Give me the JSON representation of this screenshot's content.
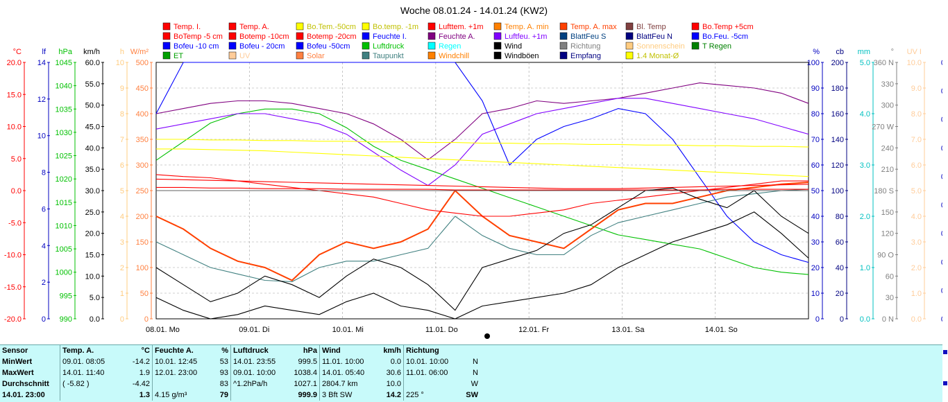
{
  "chart_data": {
    "type": "line",
    "title": "Woche 08.01.24 - 14.01.24 (KW2)",
    "x_ticks": [
      "08.01. Mo",
      "09.01. Di",
      "10.01. Mi",
      "11.01. Do",
      "12.01. Fr",
      "13.01. Sa",
      "14.01. So"
    ],
    "legend": [
      {
        "name": "Temp. I.",
        "color": "#ff0000"
      },
      {
        "name": "Temp. A.",
        "color": "#ff0000"
      },
      {
        "name": "Bo.Tem.-50cm",
        "color": "#ffff00"
      },
      {
        "name": "Bo.temp. -1m",
        "color": "#ffff00"
      },
      {
        "name": "Lufttem. +1m",
        "color": "#ff0000"
      },
      {
        "name": "Temp. A. min",
        "color": "#ff8000"
      },
      {
        "name": "Temp. A. max",
        "color": "#ff4000"
      },
      {
        "name": "Bl. Temp",
        "color": "#804040"
      },
      {
        "name": "Bo.Temp +5cm",
        "color": "#ff0000"
      },
      {
        "name": "BoTemp -5 cm",
        "color": "#ff0000"
      },
      {
        "name": "Botemp -10cm",
        "color": "#ff0000"
      },
      {
        "name": "Botemp -20cm",
        "color": "#ff0000"
      },
      {
        "name": "Feuchte I.",
        "color": "#0000ff"
      },
      {
        "name": "Feuchte A.",
        "color": "#800080"
      },
      {
        "name": "Luftfeu. +1m",
        "color": "#8000ff"
      },
      {
        "name": "BlattFeu S",
        "color": "#004080"
      },
      {
        "name": "BlattFeu N",
        "color": "#000080"
      },
      {
        "name": "Bo.Feu. -5cm",
        "color": "#0000ff"
      },
      {
        "name": "Bofeu -10 cm",
        "color": "#0000ff"
      },
      {
        "name": "Bofeu - 20cm",
        "color": "#0000ff"
      },
      {
        "name": "Bofeu -50cm",
        "color": "#0000ff"
      },
      {
        "name": "Luftdruck",
        "color": "#00c000"
      },
      {
        "name": "Regen",
        "color": "#00ffff"
      },
      {
        "name": "Wind",
        "color": "#000000"
      },
      {
        "name": "Richtung",
        "color": "#808080"
      },
      {
        "name": "Sonnenschein",
        "color": "#ffcc80"
      },
      {
        "name": "T Regen",
        "color": "#008000"
      },
      {
        "name": "ET",
        "color": "#00a000"
      },
      {
        "name": "UV",
        "color": "#ffcc99"
      },
      {
        "name": "Solar",
        "color": "#ff8040"
      },
      {
        "name": "Taupunkt",
        "color": "#408080"
      },
      {
        "name": "Windchill",
        "color": "#ff8000"
      },
      {
        "name": "Windböen",
        "color": "#000000"
      },
      {
        "name": "Empfang",
        "color": "#000080"
      },
      {
        "name": "1.4 Monat-Ø",
        "color": "#ffff00"
      }
    ],
    "axes": [
      {
        "unit": "°C",
        "color": "#ff0000",
        "ticks": [
          "20.0",
          "15.0",
          "10.0",
          "5.0",
          "0.0",
          "-5.0",
          "-10.0",
          "-15.0",
          "-20.0"
        ]
      },
      {
        "unit": "lf",
        "color": "#0000c0",
        "ticks": [
          "14",
          "12",
          "10",
          "8",
          "6",
          "4",
          "2",
          "0"
        ]
      },
      {
        "unit": "hPa",
        "color": "#00c000",
        "ticks": [
          "1045",
          "1040",
          "1035",
          "1030",
          "1025",
          "1020",
          "1015",
          "1010",
          "1005",
          "1000",
          "995",
          "990"
        ]
      },
      {
        "unit": "km/h",
        "color": "#000000",
        "ticks": [
          "60.0",
          "55.0",
          "50.0",
          "45.0",
          "40.0",
          "35.0",
          "30.0",
          "25.0",
          "20.0",
          "15.0",
          "10.0",
          "5.0",
          "0.0"
        ]
      },
      {
        "unit": "h",
        "color": "#ffcc80",
        "ticks": [
          "10",
          "9",
          "8",
          "7",
          "6",
          "5",
          "4",
          "3",
          "2",
          "1",
          "0"
        ]
      },
      {
        "unit": "W/m²",
        "color": "#ff8040",
        "ticks": [
          "500",
          "450",
          "400",
          "350",
          "300",
          "250",
          "200",
          "150",
          "100",
          "50",
          "0"
        ]
      },
      {
        "unit": "%",
        "color": "#0000c0",
        "ticks": [
          "100",
          "90",
          "80",
          "70",
          "60",
          "50",
          "40",
          "30",
          "20",
          "10",
          "0"
        ]
      },
      {
        "unit": "cb",
        "color": "#000080",
        "ticks": [
          "200",
          "180",
          "160",
          "140",
          "120",
          "100",
          "80",
          "60",
          "40",
          "20",
          "0"
        ]
      },
      {
        "unit": "mm",
        "color": "#00c0c0",
        "ticks": [
          "5.0",
          "4.0",
          "3.0",
          "2.0",
          "1.0",
          "0.0"
        ]
      },
      {
        "unit": "°",
        "color": "#808080",
        "ticks": [
          "360 N",
          "330",
          "300",
          "270 W",
          "240",
          "210",
          "180 S",
          "150",
          "120",
          "90 O",
          "60",
          "30",
          "0 N"
        ]
      },
      {
        "unit": "UV I",
        "color": "#ffcc99",
        "ticks": [
          "10.0",
          "9.0",
          "8.0",
          "7.0",
          "6.0",
          "5.0",
          "4.0",
          "3.0",
          "2.0",
          "1.0",
          "0.0"
        ]
      }
    ],
    "far_right_ticks": [
      "0",
      "0",
      "0",
      "0",
      "0",
      "0",
      "0",
      "0",
      "0",
      "0"
    ],
    "series": [
      {
        "name": "Luftdruck",
        "axis": "hPa",
        "color": "#00c000",
        "values": [
          1024,
          1028,
          1032,
          1034,
          1035,
          1035,
          1034,
          1031,
          1027,
          1024,
          1022,
          1020,
          1018,
          1016,
          1014,
          1012,
          1010,
          1008,
          1007,
          1006,
          1005,
          1003,
          1001,
          1000,
          999.5
        ]
      },
      {
        "name": "Feuchte A.",
        "axis": "%",
        "color": "#800080",
        "values": [
          80,
          82,
          84,
          85,
          85,
          84,
          82,
          80,
          76,
          70,
          62,
          70,
          80,
          82,
          85,
          84,
          85,
          86,
          88,
          90,
          92,
          91,
          90,
          88,
          84
        ]
      },
      {
        "name": "Luftfeu. +1m",
        "axis": "%",
        "color": "#8000ff",
        "values": [
          74,
          76,
          78,
          80,
          80,
          78,
          76,
          72,
          65,
          58,
          52,
          60,
          72,
          76,
          80,
          82,
          84,
          86,
          86,
          84,
          82,
          80,
          78,
          75,
          72
        ]
      },
      {
        "name": "Feuchte I.",
        "axis": "%",
        "color": "#0000ff",
        "values": [
          80,
          100,
          100,
          100,
          100,
          100,
          100,
          100,
          100,
          100,
          100,
          100,
          85,
          60,
          70,
          75,
          78,
          82,
          80,
          70,
          55,
          40,
          30,
          25,
          22
        ]
      },
      {
        "name": "Temp. A.",
        "axis": "°C",
        "color": "#ff4000",
        "values": [
          -4,
          -6,
          -9,
          -11,
          -12,
          -14,
          -10,
          -8,
          -9,
          -8,
          -6,
          0,
          -4,
          -7,
          -8,
          -9,
          -6,
          -3,
          -2,
          -2,
          -1,
          0,
          0.5,
          1,
          1.3
        ]
      },
      {
        "name": "Taupunkt",
        "axis": "°C",
        "color": "#408080",
        "values": [
          -8,
          -10,
          -12,
          -13,
          -14,
          -14.2,
          -12,
          -11,
          -11,
          -10,
          -9,
          -4,
          -7,
          -9,
          -10,
          -10,
          -7,
          -5,
          -4,
          -3,
          -2,
          -1,
          -0.5,
          0,
          0.2
        ]
      },
      {
        "name": "Bo.Tem.-50cm",
        "axis": "°C",
        "color": "#ffff00",
        "values": [
          6.5,
          6.5,
          6.4,
          6.3,
          6.2,
          6.0,
          5.8,
          5.6,
          5.4,
          5.2,
          5.0,
          4.8,
          4.6,
          4.4,
          4.2,
          4.0,
          3.8,
          3.6,
          3.4,
          3.2,
          3.0,
          2.8,
          2.6,
          2.4,
          2.2
        ]
      },
      {
        "name": "Bo.temp. -1m",
        "axis": "°C",
        "color": "#ffff00",
        "values": [
          8.0,
          8.0,
          7.9,
          7.9,
          7.8,
          7.8,
          7.7,
          7.7,
          7.6,
          7.6,
          7.5,
          7.5,
          7.4,
          7.4,
          7.3,
          7.3,
          7.2,
          7.2,
          7.1,
          7.1,
          7.0,
          7.0,
          6.9,
          6.9,
          6.8
        ]
      },
      {
        "name": "BoTemp -5 cm",
        "axis": "°C",
        "color": "#ff0000",
        "values": [
          2.5,
          2.2,
          2.0,
          1.5,
          1.0,
          0.5,
          0,
          -0.5,
          -1,
          -2,
          -3,
          -3.5,
          -4,
          -4,
          -3.5,
          -3,
          -2,
          -1.5,
          -1,
          -0.5,
          0,
          0.5,
          1,
          1.5,
          1.5
        ]
      },
      {
        "name": "Botemp -10cm",
        "axis": "°C",
        "color": "#ff0000",
        "values": [
          1.8,
          1.7,
          1.6,
          1.5,
          1.4,
          1.3,
          1.2,
          1.1,
          1.0,
          0.9,
          0.8,
          0.7,
          0.6,
          0.5,
          0.4,
          0.3,
          0.3,
          0.3,
          0.4,
          0.5,
          0.6,
          0.7,
          0.8,
          0.9,
          1.0
        ]
      },
      {
        "name": "Botemp -20cm",
        "axis": "°C",
        "color": "#ff0000",
        "values": [
          0.5,
          0.5,
          0.4,
          0.4,
          0.3,
          0.3,
          0.3,
          0.2,
          0.2,
          0.2,
          0.2,
          0.1,
          0.1,
          0.1,
          0.1,
          0.1,
          0.1,
          0.1,
          0.1,
          0.1,
          0.1,
          0.2,
          0.2,
          0.2,
          0.2
        ]
      },
      {
        "name": "Wind",
        "axis": "km/h",
        "color": "#000000",
        "values": [
          5,
          2,
          0,
          1,
          3,
          2,
          1,
          4,
          6,
          3,
          2,
          0,
          3,
          4,
          5,
          6,
          8,
          12,
          15,
          18,
          20,
          22,
          25,
          20,
          14.2
        ]
      },
      {
        "name": "Windböen",
        "axis": "km/h",
        "color": "#000000",
        "values": [
          12,
          8,
          4,
          6,
          10,
          8,
          5,
          10,
          14,
          12,
          8,
          2,
          12,
          14,
          16,
          20,
          22,
          26,
          30,
          30.6,
          28,
          26,
          30,
          24,
          20
        ]
      }
    ]
  },
  "stats": {
    "headers": [
      {
        "label": "Sensor",
        "unit": ""
      },
      {
        "label": "Temp. A.",
        "unit": "°C"
      },
      {
        "label": "Feuchte A.",
        "unit": "%"
      },
      {
        "label": "Luftdruck",
        "unit": "hPa"
      },
      {
        "label": "Wind",
        "unit": "km/h"
      },
      {
        "label": "Richtung",
        "unit": ""
      }
    ],
    "rows": [
      {
        "label": "MinWert",
        "c": [
          [
            "09.01.  08:05",
            "-14.2"
          ],
          [
            "10.01.  12:45",
            "53"
          ],
          [
            "14.01.  23:55",
            "999.5"
          ],
          [
            "11.01.  10:00",
            "0.0"
          ],
          [
            "10.01.  10:00",
            "N"
          ]
        ]
      },
      {
        "label": "MaxWert",
        "c": [
          [
            "14.01.  11:40",
            "1.9"
          ],
          [
            "12.01.  23:00",
            "93"
          ],
          [
            "09.01.  10:00",
            "1038.4"
          ],
          [
            "14.01.  05:40",
            "30.6"
          ],
          [
            "11.01.  06:00",
            "N"
          ]
        ]
      },
      {
        "label": "Durchschnitt",
        "c": [
          [
            "( -5.82 )",
            "-4.42"
          ],
          [
            "",
            "83"
          ],
          [
            "^1.2hPa/h",
            "1027.1"
          ],
          [
            "2804.7 km",
            "10.0"
          ],
          [
            "",
            "W"
          ]
        ]
      },
      {
        "label": "14.01. 23:00",
        "c": [
          [
            "",
            "1.3"
          ],
          [
            "4.15 g/m³",
            "79"
          ],
          [
            "",
            "999.9"
          ],
          [
            "3 Bft SW",
            "14.2"
          ],
          [
            "225 °",
            "SW"
          ]
        ]
      }
    ]
  }
}
